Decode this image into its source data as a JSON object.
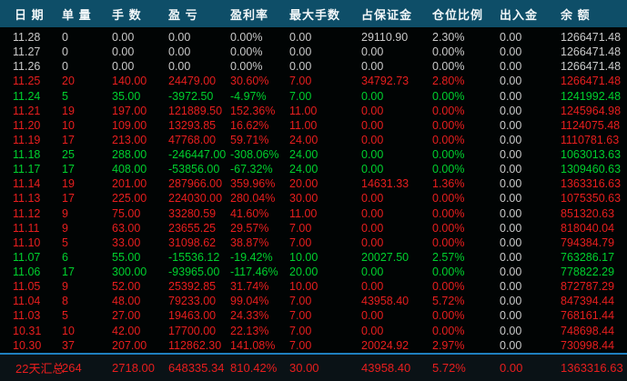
{
  "colors": {
    "red": "#e81e1e",
    "green": "#00d02e",
    "gray": "#c9c9c9",
    "header_bg": "#0e4e68",
    "header_text": "#f2f7f9",
    "footer_bg": "#0a1216",
    "divider": "#1f7fbf",
    "bg": "#010404"
  },
  "table": {
    "columns": [
      {
        "key": "date",
        "label": "日 期"
      },
      {
        "key": "orders",
        "label": "单 量"
      },
      {
        "key": "lots",
        "label": "手 数"
      },
      {
        "key": "pnl",
        "label": "盈 亏"
      },
      {
        "key": "pnl_rate",
        "label": "盈利率"
      },
      {
        "key": "max_lots",
        "label": "最大手数"
      },
      {
        "key": "margin",
        "label": "占保证金"
      },
      {
        "key": "position_ratio",
        "label": "仓位比例"
      },
      {
        "key": "cash_flow",
        "label": "出入金"
      },
      {
        "key": "balance",
        "label": "余 额"
      }
    ],
    "rows": [
      {
        "date": "11.28",
        "orders": "0",
        "lots": "0.00",
        "pnl": "0.00",
        "pnl_rate": "0.00%",
        "max_lots": "0.00",
        "margin": "29110.90",
        "position_ratio": "2.30%",
        "cash_flow": "0.00",
        "balance": "1266471.48",
        "color": "gray"
      },
      {
        "date": "11.27",
        "orders": "0",
        "lots": "0.00",
        "pnl": "0.00",
        "pnl_rate": "0.00%",
        "max_lots": "0.00",
        "margin": "0.00",
        "position_ratio": "0.00%",
        "cash_flow": "0.00",
        "balance": "1266471.48",
        "color": "gray"
      },
      {
        "date": "11.26",
        "orders": "0",
        "lots": "0.00",
        "pnl": "0.00",
        "pnl_rate": "0.00%",
        "max_lots": "0.00",
        "margin": "0.00",
        "position_ratio": "0.00%",
        "cash_flow": "0.00",
        "balance": "1266471.48",
        "color": "gray"
      },
      {
        "date": "11.25",
        "orders": "20",
        "lots": "140.00",
        "pnl": "24479.00",
        "pnl_rate": "30.60%",
        "max_lots": "7.00",
        "margin": "34792.73",
        "position_ratio": "2.80%",
        "cash_flow": "0.00",
        "balance": "1266471.48",
        "color": "red"
      },
      {
        "date": "11.24",
        "orders": "5",
        "lots": "35.00",
        "pnl": "-3972.50",
        "pnl_rate": "-4.97%",
        "max_lots": "7.00",
        "margin": "0.00",
        "position_ratio": "0.00%",
        "cash_flow": "0.00",
        "balance": "1241992.48",
        "color": "green"
      },
      {
        "date": "11.21",
        "orders": "19",
        "lots": "197.00",
        "pnl": "121889.50",
        "pnl_rate": "152.36%",
        "max_lots": "11.00",
        "margin": "0.00",
        "position_ratio": "0.00%",
        "cash_flow": "0.00",
        "balance": "1245964.98",
        "color": "red"
      },
      {
        "date": "11.20",
        "orders": "10",
        "lots": "109.00",
        "pnl": "13293.85",
        "pnl_rate": "16.62%",
        "max_lots": "11.00",
        "margin": "0.00",
        "position_ratio": "0.00%",
        "cash_flow": "0.00",
        "balance": "1124075.48",
        "color": "red"
      },
      {
        "date": "11.19",
        "orders": "17",
        "lots": "213.00",
        "pnl": "47768.00",
        "pnl_rate": "59.71%",
        "max_lots": "24.00",
        "margin": "0.00",
        "position_ratio": "0.00%",
        "cash_flow": "0.00",
        "balance": "1110781.63",
        "color": "red"
      },
      {
        "date": "11.18",
        "orders": "25",
        "lots": "288.00",
        "pnl": "-246447.00",
        "pnl_rate": "-308.06%",
        "max_lots": "24.00",
        "margin": "0.00",
        "position_ratio": "0.00%",
        "cash_flow": "0.00",
        "balance": "1063013.63",
        "color": "green"
      },
      {
        "date": "11.17",
        "orders": "17",
        "lots": "408.00",
        "pnl": "-53856.00",
        "pnl_rate": "-67.32%",
        "max_lots": "24.00",
        "margin": "0.00",
        "position_ratio": "0.00%",
        "cash_flow": "0.00",
        "balance": "1309460.63",
        "color": "green"
      },
      {
        "date": "11.14",
        "orders": "19",
        "lots": "201.00",
        "pnl": "287966.00",
        "pnl_rate": "359.96%",
        "max_lots": "20.00",
        "margin": "14631.33",
        "position_ratio": "1.36%",
        "cash_flow": "0.00",
        "balance": "1363316.63",
        "color": "red"
      },
      {
        "date": "11.13",
        "orders": "17",
        "lots": "225.00",
        "pnl": "224030.00",
        "pnl_rate": "280.04%",
        "max_lots": "30.00",
        "margin": "0.00",
        "position_ratio": "0.00%",
        "cash_flow": "0.00",
        "balance": "1075350.63",
        "color": "red"
      },
      {
        "date": "11.12",
        "orders": "9",
        "lots": "75.00",
        "pnl": "33280.59",
        "pnl_rate": "41.60%",
        "max_lots": "11.00",
        "margin": "0.00",
        "position_ratio": "0.00%",
        "cash_flow": "0.00",
        "balance": "851320.63",
        "color": "red"
      },
      {
        "date": "11.11",
        "orders": "9",
        "lots": "63.00",
        "pnl": "23655.25",
        "pnl_rate": "29.57%",
        "max_lots": "7.00",
        "margin": "0.00",
        "position_ratio": "0.00%",
        "cash_flow": "0.00",
        "balance": "818040.04",
        "color": "red"
      },
      {
        "date": "11.10",
        "orders": "5",
        "lots": "33.00",
        "pnl": "31098.62",
        "pnl_rate": "38.87%",
        "max_lots": "7.00",
        "margin": "0.00",
        "position_ratio": "0.00%",
        "cash_flow": "0.00",
        "balance": "794384.79",
        "color": "red"
      },
      {
        "date": "11.07",
        "orders": "6",
        "lots": "55.00",
        "pnl": "-15536.12",
        "pnl_rate": "-19.42%",
        "max_lots": "10.00",
        "margin": "20027.50",
        "position_ratio": "2.57%",
        "cash_flow": "0.00",
        "balance": "763286.17",
        "color": "green"
      },
      {
        "date": "11.06",
        "orders": "17",
        "lots": "300.00",
        "pnl": "-93965.00",
        "pnl_rate": "-117.46%",
        "max_lots": "20.00",
        "margin": "0.00",
        "position_ratio": "0.00%",
        "cash_flow": "0.00",
        "balance": "778822.29",
        "color": "green"
      },
      {
        "date": "11.05",
        "orders": "9",
        "lots": "52.00",
        "pnl": "25392.85",
        "pnl_rate": "31.74%",
        "max_lots": "10.00",
        "margin": "0.00",
        "position_ratio": "0.00%",
        "cash_flow": "0.00",
        "balance": "872787.29",
        "color": "red"
      },
      {
        "date": "11.04",
        "orders": "8",
        "lots": "48.00",
        "pnl": "79233.00",
        "pnl_rate": "99.04%",
        "max_lots": "7.00",
        "margin": "43958.40",
        "position_ratio": "5.72%",
        "cash_flow": "0.00",
        "balance": "847394.44",
        "color": "red"
      },
      {
        "date": "11.03",
        "orders": "5",
        "lots": "27.00",
        "pnl": "19463.00",
        "pnl_rate": "24.33%",
        "max_lots": "7.00",
        "margin": "0.00",
        "position_ratio": "0.00%",
        "cash_flow": "0.00",
        "balance": "768161.44",
        "color": "red"
      },
      {
        "date": "10.31",
        "orders": "10",
        "lots": "42.00",
        "pnl": "17700.00",
        "pnl_rate": "22.13%",
        "max_lots": "7.00",
        "margin": "0.00",
        "position_ratio": "0.00%",
        "cash_flow": "0.00",
        "balance": "748698.44",
        "color": "red"
      },
      {
        "date": "10.30",
        "orders": "37",
        "lots": "207.00",
        "pnl": "112862.30",
        "pnl_rate": "141.08%",
        "max_lots": "7.00",
        "margin": "20024.92",
        "position_ratio": "2.97%",
        "cash_flow": "0.00",
        "balance": "730998.44",
        "color": "red"
      }
    ],
    "summary": {
      "date": "22天汇总",
      "orders": "264",
      "lots": "2718.00",
      "pnl": "648335.34",
      "pnl_rate": "810.42%",
      "max_lots": "30.00",
      "margin": "43958.40",
      "position_ratio": "5.72%",
      "cash_flow": "0.00",
      "balance": "1363316.63"
    }
  }
}
